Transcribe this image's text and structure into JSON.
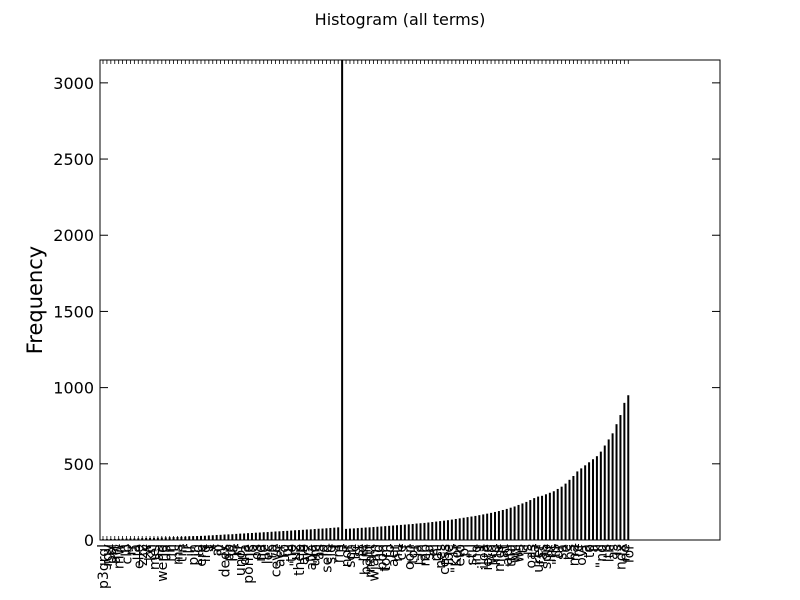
{
  "chart_data": {
    "type": "bar",
    "title": "Histogram (all terms)",
    "xlabel": "",
    "ylabel": "Frequency",
    "ylim": [
      0,
      3150
    ],
    "yticks": [
      0,
      500,
      1000,
      1500,
      2000,
      2500,
      3000
    ],
    "grid": false,
    "legend": "none",
    "bar_color": "#000000",
    "categories": [
      "p3grgl",
      "rgy",
      "bsl",
      "art",
      "mw",
      "h",
      "clb",
      "rr",
      "a",
      "elle",
      "zzz",
      "w",
      "kn",
      "mel",
      "aa",
      "wend",
      "ua",
      "hh",
      "ll",
      "ms",
      "tin",
      "r",
      "lr",
      "pln",
      "ig",
      "ere",
      "lrg",
      "t",
      "x",
      "al",
      "jy",
      "dees",
      "pp",
      "ha",
      "rr",
      "unor",
      "dla",
      "pome",
      "io",
      "os",
      "nd",
      "lle",
      "lec",
      "rp",
      "ceve",
      "aer",
      "ro",
      "ui",
      "tie",
      "\"uz",
      "thep",
      "ale",
      "yz",
      "atia",
      "um",
      "\"as",
      "io",
      "seld",
      "sig",
      "f",
      "rm",
      "a",
      "nor",
      "sch",
      "lic",
      "st",
      "ne",
      "bam",
      "rnatt",
      "wiam",
      "nd",
      "pon",
      "tom",
      "to",
      "aer",
      "nu",
      "ce",
      "f",
      "oon",
      "tor",
      "ia",
      "lan",
      "mp",
      "sa",
      "el",
      "mi",
      "nes",
      "cess",
      "lbe",
      "ls",
      "\"Kor",
      "eto",
      "pl",
      "i",
      "stu",
      "ing",
      "t",
      "iloa",
      "iete",
      "wg",
      "lng",
      "mor",
      "at",
      "apl",
      "tha",
      "wil",
      "ws",
      "tl",
      "is",
      "oas",
      "ta",
      "urer",
      "fas",
      "sdp",
      "int",
      "rs",
      "\"dr",
      "sa",
      "e",
      "bs",
      "ma",
      "rc",
      "ovf",
      "a",
      "to",
      "a",
      "ll",
      "\"nd",
      "s",
      "lth",
      "as",
      "ls",
      "ndx",
      "ne",
      "for"
    ],
    "values": [
      5,
      6,
      7,
      7,
      8,
      9,
      9,
      10,
      10,
      11,
      12,
      13,
      13,
      14,
      15,
      16,
      17,
      18,
      19,
      20,
      21,
      22,
      24,
      25,
      26,
      27,
      28,
      30,
      31,
      33,
      34,
      36,
      37,
      38,
      40,
      42,
      43,
      45,
      46,
      48,
      49,
      51,
      52,
      54,
      56,
      57,
      59,
      60,
      62,
      64,
      65,
      67,
      69,
      70,
      72,
      74,
      75,
      77,
      79,
      81,
      83,
      3200,
      73,
      75,
      76,
      78,
      80,
      82,
      83,
      85,
      87,
      89,
      91,
      93,
      95,
      97,
      99,
      101,
      103,
      105,
      108,
      110,
      112,
      115,
      118,
      121,
      124,
      127,
      130,
      134,
      138,
      142,
      146,
      150,
      154,
      158,
      163,
      168,
      173,
      178,
      184,
      190,
      197,
      204,
      212,
      220,
      230,
      240,
      250,
      262,
      275,
      285,
      290,
      300,
      310,
      320,
      335,
      350,
      370,
      395,
      420,
      450,
      470,
      490,
      510,
      530,
      550,
      580,
      620,
      660,
      700,
      760,
      820,
      900,
      950
    ]
  }
}
